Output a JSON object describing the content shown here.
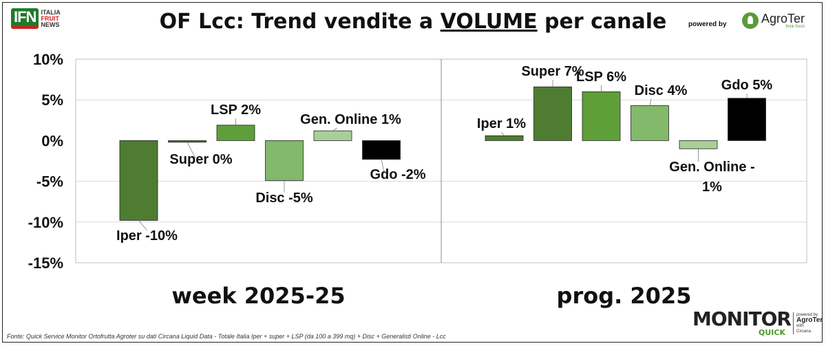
{
  "header": {
    "ifn_logo": "IFN",
    "ifn_tagline": [
      "ITALIA",
      "FRUIT",
      "NEWS"
    ],
    "title_pre": "OF Lcc: Trend vendite a ",
    "title_highlight": "VOLUME",
    "title_post": " per canale",
    "powered_by": "powered by",
    "agroter_name": "AgroTer",
    "agroter_tagline": "think fresh"
  },
  "chart_data": {
    "type": "bar",
    "ylim": [
      -15,
      10
    ],
    "yticks": [
      "10%",
      "5%",
      "0%",
      "-5%",
      "-10%",
      "-15%"
    ],
    "ytick_values": [
      10,
      5,
      0,
      -5,
      -10,
      -15
    ],
    "groups": [
      {
        "label": "week 2025-25",
        "bars": [
          {
            "value": -9.8,
            "label": "Iper -10%",
            "color": "#4e7d32"
          },
          {
            "value": -0.2,
            "label": "Super 0%",
            "color": "#4e7d32"
          },
          {
            "value": 1.9,
            "label": "LSP 2%",
            "color": "#5f9f3a"
          },
          {
            "value": -4.9,
            "label": "Disc -5%",
            "color": "#83b96a"
          },
          {
            "value": 1.2,
            "label": "Gen. Online 1%",
            "color": "#a9cf96"
          },
          {
            "value": -2.3,
            "label": "Gdo -2%",
            "color": "#000000"
          }
        ]
      },
      {
        "label": "prog. 2025",
        "bars": [
          {
            "value": 0.6,
            "label": "Iper 1%",
            "color": "#4e7d32"
          },
          {
            "value": 6.6,
            "label": "Super 7%",
            "color": "#4e7d32"
          },
          {
            "value": 6.0,
            "label": "LSP 6%",
            "color": "#5f9f3a"
          },
          {
            "value": 4.3,
            "label": "Disc 4%",
            "color": "#83b96a"
          },
          {
            "value": -1.0,
            "label": [
              "Gen. Online -",
              "1%"
            ],
            "color": "#a9cf96"
          },
          {
            "value": 5.2,
            "label": "Gdo 5%",
            "color": "#000000"
          }
        ]
      }
    ]
  },
  "footer": {
    "source": "Fonte: Quick Service Monitor Ortofrutta Agroter su dati Circana Liquid Data - Totale Italia Iper + super + LSP (da 100 a 399 mq) + Disc + Generalisti Online - Lcc",
    "monitor": "MONITOR",
    "quick": "QUICK",
    "powered_by": "powered by",
    "agroter": "AgroTer",
    "with": "with",
    "circana": "Circana."
  }
}
